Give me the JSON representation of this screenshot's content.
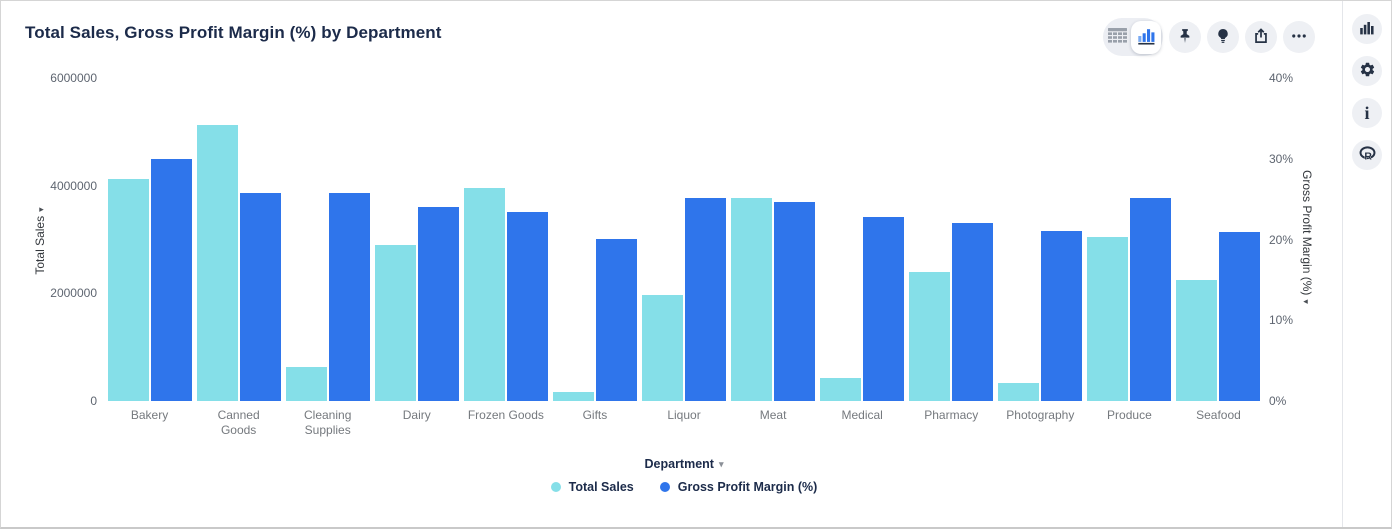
{
  "header": {
    "title": "Total Sales, Gross Profit Margin (%) by Department"
  },
  "toolbar": {
    "icons": [
      {
        "name": "table-view-icon",
        "selected": false
      },
      {
        "name": "chart-view-icon",
        "selected": true
      },
      {
        "name": "pin-icon"
      },
      {
        "name": "lightbulb-icon"
      },
      {
        "name": "export-icon"
      },
      {
        "name": "ellipsis-icon"
      }
    ]
  },
  "right_rail": {
    "icons": [
      {
        "name": "bar-chart-icon"
      },
      {
        "name": "gear-icon"
      },
      {
        "name": "info-icon",
        "glyph": "i"
      },
      {
        "name": "r-logo-icon",
        "glyph": "R"
      }
    ]
  },
  "colors": {
    "total_sales": "#85dfe8",
    "gross_profit_margin": "#2f75eb",
    "title_navy": "#1c2b4a",
    "tick_gray": "#5e6570",
    "category_gray": "#75797e"
  },
  "chart_data": {
    "type": "bar",
    "title": "Total Sales, Gross Profit Margin (%) by Department",
    "xlabel": "Department",
    "grid": false,
    "legend_position": "bottom-center",
    "categories": [
      "Bakery",
      "Canned Goods",
      "Cleaning Supplies",
      "Dairy",
      "Frozen Goods",
      "Gifts",
      "Liquor",
      "Meat",
      "Medical",
      "Pharmacy",
      "Photography",
      "Produce",
      "Seafood"
    ],
    "series": [
      {
        "name": "Total Sales",
        "axis": "left",
        "color": "#85dfe8",
        "values": [
          4130000,
          5130000,
          630000,
          2900000,
          3960000,
          170000,
          1970000,
          3780000,
          430000,
          2400000,
          330000,
          3050000,
          2250000
        ]
      },
      {
        "name": "Gross Profit Margin (%)",
        "axis": "right",
        "color": "#2f75eb",
        "values": [
          30.0,
          25.8,
          25.7,
          24.0,
          23.4,
          20.0,
          25.1,
          24.6,
          22.8,
          22.1,
          21.1,
          25.1,
          20.9
        ]
      }
    ],
    "left_axis": {
      "label": "Total Sales",
      "ticks": [
        "0",
        "2000000",
        "4000000",
        "6000000"
      ],
      "min": 0,
      "max": 6000000
    },
    "right_axis": {
      "label": "Gross Profit Margin (%)",
      "ticks": [
        "0%",
        "10%",
        "20%",
        "30%",
        "40%"
      ],
      "min": 0,
      "max": 40
    }
  }
}
